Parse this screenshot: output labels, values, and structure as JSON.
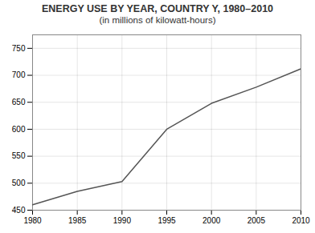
{
  "chart_data": {
    "type": "line",
    "title": "ENERGY USE BY YEAR, COUNTRY Y, 1980–2010",
    "subtitle": "(in millions of kilowatt-hours)",
    "x": [
      1980,
      1985,
      1990,
      1995,
      2000,
      2005,
      2010
    ],
    "values": [
      460,
      485,
      503,
      600,
      648,
      678,
      712
    ],
    "color": "#555555",
    "xlim": [
      1980,
      2010
    ],
    "ylim": [
      450,
      775
    ],
    "xticks": [
      1980,
      1985,
      1990,
      1995,
      2000,
      2005,
      2010
    ],
    "yticks": [
      450,
      500,
      550,
      600,
      650,
      700,
      750
    ],
    "grid": true
  }
}
